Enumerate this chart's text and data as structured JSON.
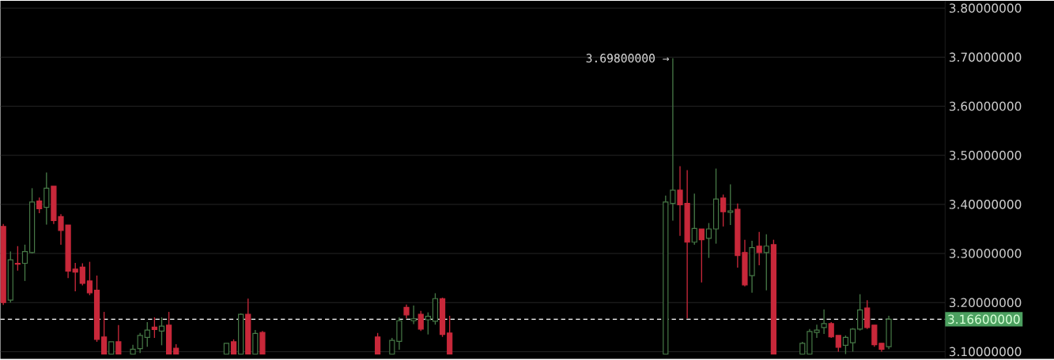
{
  "chart_data": {
    "type": "candlestick",
    "categories": [
      null,
      null,
      null,
      null,
      null,
      null,
      null,
      null,
      null,
      null,
      null,
      null,
      null,
      null,
      null,
      null,
      null,
      null,
      null,
      null,
      null,
      null,
      null,
      null,
      null,
      null,
      null,
      null,
      null,
      null,
      null,
      null,
      null,
      null,
      null,
      null,
      null,
      null,
      null,
      null,
      null,
      null,
      null,
      null,
      null,
      null,
      null,
      null,
      null,
      null,
      null,
      null,
      null,
      null,
      null,
      null,
      null,
      null,
      null,
      null,
      null,
      null,
      null,
      null,
      null,
      null,
      null,
      null,
      null,
      null,
      null,
      null,
      null,
      null,
      null,
      null,
      null,
      null,
      null,
      null,
      null,
      null,
      null,
      null,
      null,
      null,
      null,
      null,
      null,
      null,
      null,
      null,
      null,
      null,
      null,
      null,
      null,
      null,
      null,
      null,
      null,
      null,
      null,
      null,
      null,
      null,
      null,
      null,
      null,
      null,
      null,
      null,
      null,
      null,
      null,
      null,
      null,
      null,
      null,
      null,
      null,
      null,
      null,
      null,
      null,
      null,
      null,
      null,
      null,
      null,
      null
    ],
    "ohlc": [
      [
        3.355,
        3.36,
        3.195,
        3.2
      ],
      [
        3.205,
        3.304,
        3.2,
        3.287
      ],
      [
        3.28,
        3.315,
        3.265,
        3.278
      ],
      [
        3.28,
        3.318,
        3.244,
        3.304
      ],
      [
        3.302,
        3.433,
        3.3,
        3.405
      ],
      [
        3.407,
        3.414,
        3.382,
        3.391
      ],
      [
        3.394,
        3.465,
        3.359,
        3.433
      ],
      [
        3.437,
        3.437,
        3.36,
        3.367
      ],
      [
        3.375,
        3.38,
        3.318,
        3.347
      ],
      [
        3.358,
        3.358,
        3.25,
        3.264
      ],
      [
        3.268,
        3.281,
        3.223,
        3.262
      ],
      [
        3.272,
        3.28,
        3.235,
        3.239
      ],
      [
        3.244,
        3.283,
        3.215,
        3.22
      ],
      [
        3.225,
        3.255,
        3.12,
        3.125
      ],
      [
        3.13,
        3.181,
        3.095,
        3.095
      ],
      [
        3.095,
        3.12,
        3.095,
        3.12
      ],
      [
        3.12,
        3.154,
        3.095,
        3.095
      ],
      null,
      [
        3.095,
        3.114,
        3.095,
        3.105
      ],
      [
        3.106,
        3.138,
        3.097,
        3.133
      ],
      [
        3.129,
        3.16,
        3.11,
        3.144
      ],
      [
        3.15,
        3.17,
        3.128,
        3.145
      ],
      [
        3.142,
        3.17,
        3.113,
        3.152
      ],
      [
        3.154,
        3.181,
        3.095,
        3.095
      ],
      [
        3.107,
        3.115,
        3.095,
        3.095
      ],
      null,
      null,
      null,
      null,
      null,
      null,
      [
        3.095,
        3.117,
        3.095,
        3.117
      ],
      [
        3.12,
        3.125,
        3.095,
        3.095
      ],
      [
        3.095,
        3.178,
        3.095,
        3.176
      ],
      [
        3.176,
        3.208,
        3.095,
        3.095
      ],
      [
        3.095,
        3.144,
        3.095,
        3.137
      ],
      [
        3.139,
        3.142,
        3.095,
        3.095
      ],
      null,
      null,
      null,
      null,
      null,
      null,
      null,
      null,
      null,
      null,
      null,
      null,
      null,
      null,
      null,
      [
        3.13,
        3.138,
        3.095,
        3.095
      ],
      null,
      [
        3.095,
        3.128,
        3.095,
        3.123
      ],
      [
        3.121,
        3.17,
        3.104,
        3.163
      ],
      [
        3.19,
        3.196,
        3.168,
        3.175
      ],
      [
        3.163,
        3.194,
        3.156,
        3.167
      ],
      [
        3.176,
        3.183,
        3.142,
        3.146
      ],
      [
        3.165,
        3.18,
        3.135,
        3.172
      ],
      [
        3.162,
        3.219,
        3.155,
        3.208
      ],
      [
        3.208,
        3.21,
        3.13,
        3.135
      ],
      [
        3.138,
        3.173,
        3.095,
        3.095
      ],
      null,
      null,
      null,
      null,
      null,
      null,
      null,
      null,
      null,
      null,
      null,
      null,
      null,
      null,
      null,
      null,
      null,
      null,
      null,
      null,
      null,
      null,
      null,
      null,
      null,
      null,
      null,
      null,
      null,
      [
        3.095,
        3.418,
        3.095,
        3.405
      ],
      [
        3.402,
        3.698,
        3.367,
        3.429
      ],
      [
        3.429,
        3.478,
        3.336,
        3.399
      ],
      [
        3.402,
        3.47,
        3.168,
        3.323
      ],
      [
        3.323,
        3.422,
        3.318,
        3.351
      ],
      [
        3.35,
        3.35,
        3.241,
        3.328
      ],
      [
        3.331,
        3.362,
        3.291,
        3.35
      ],
      [
        3.35,
        3.473,
        3.32,
        3.411
      ],
      [
        3.413,
        3.42,
        3.355,
        3.385
      ],
      [
        3.384,
        3.441,
        3.358,
        3.387
      ],
      [
        3.39,
        3.402,
        3.271,
        3.296
      ],
      [
        3.302,
        3.328,
        3.233,
        3.236
      ],
      [
        3.255,
        3.326,
        3.22,
        3.312
      ],
      [
        3.315,
        3.344,
        3.276,
        3.302
      ],
      [
        3.302,
        3.339,
        3.225,
        3.315
      ],
      [
        3.318,
        3.328,
        3.095,
        3.095
      ],
      null,
      null,
      null,
      [
        3.095,
        3.12,
        3.095,
        3.117
      ],
      [
        3.095,
        3.146,
        3.095,
        3.141
      ],
      [
        3.139,
        3.155,
        3.128,
        3.144
      ],
      [
        3.149,
        3.186,
        3.136,
        3.157
      ],
      [
        3.157,
        3.16,
        3.128,
        3.13
      ],
      [
        3.133,
        3.133,
        3.1,
        3.109
      ],
      [
        3.113,
        3.133,
        3.095,
        3.129
      ],
      [
        3.118,
        3.148,
        3.1,
        3.146
      ],
      [
        3.146,
        3.217,
        3.143,
        3.185
      ],
      [
        3.189,
        3.205,
        3.146,
        3.149
      ],
      [
        3.154,
        3.154,
        3.11,
        3.114
      ],
      [
        3.117,
        3.117,
        3.1,
        3.105
      ],
      [
        3.11,
        3.173,
        3.105,
        3.166
      ],
      null,
      null,
      null,
      null,
      null,
      null,
      null
    ],
    "ylim": [
      3.085,
      3.815
    ],
    "yticks": [
      {
        "value": 3.1,
        "label": "3.10000000"
      },
      {
        "value": 3.2,
        "label": "3.20000000"
      },
      {
        "value": 3.3,
        "label": "3.30000000"
      },
      {
        "value": 3.4,
        "label": "3.40000000"
      },
      {
        "value": 3.5,
        "label": "3.50000000"
      },
      {
        "value": 3.6,
        "label": "3.60000000"
      },
      {
        "value": 3.7,
        "label": "3.70000000"
      },
      {
        "value": 3.8,
        "label": "3.80000000"
      }
    ],
    "tick_labels": "y",
    "grid": "y",
    "ref_lines": [
      {
        "axis": "y",
        "value": 3.166,
        "label": "3.16600000",
        "color": "#ffffff",
        "line_style": "dashed"
      }
    ],
    "annotations": [
      "3.69800000 →"
    ]
  }
}
